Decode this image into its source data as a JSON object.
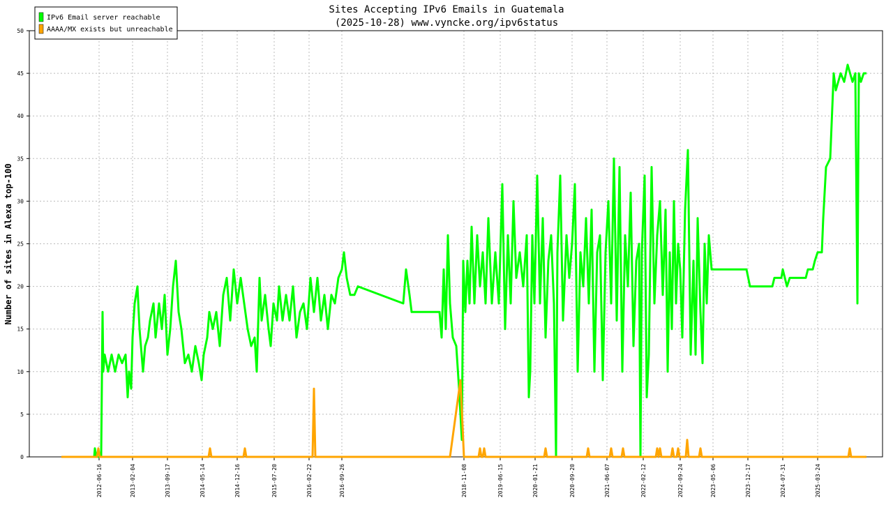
{
  "chart_data": {
    "type": "line",
    "title": "Sites Accepting IPv6 Emails in Guatemala",
    "subtitle": "(2025-10-28) www.vyncke.org/ipv6status",
    "y_label": "Number of sites in Alexa top-100",
    "xlim": [
      42,
      1265
    ],
    "ylim": [
      0,
      50
    ],
    "yticks": [
      0,
      5,
      10,
      15,
      20,
      25,
      30,
      35,
      40,
      45,
      50
    ],
    "xticks": [
      {
        "value": 142,
        "label": "2012-06-16"
      },
      {
        "value": 190,
        "label": "2013-02-04"
      },
      {
        "value": 240,
        "label": "2013-09-17"
      },
      {
        "value": 290,
        "label": "2014-05-14"
      },
      {
        "value": 340,
        "label": "2014-12-16"
      },
      {
        "value": 393,
        "label": "2015-07-20"
      },
      {
        "value": 443,
        "label": "2016-02-22"
      },
      {
        "value": 490,
        "label": "2016-09-26"
      },
      {
        "value": 665,
        "label": "2018-11-08"
      },
      {
        "value": 717,
        "label": "2019-06-15"
      },
      {
        "value": 767,
        "label": "2020-01-21"
      },
      {
        "value": 820,
        "label": "2020-09-20"
      },
      {
        "value": 870,
        "label": "2021-06-07"
      },
      {
        "value": 922,
        "label": "2022-02-12"
      },
      {
        "value": 975,
        "label": "2022-09-24"
      },
      {
        "value": 1022,
        "label": "2023-05-06"
      },
      {
        "value": 1072,
        "label": "2023-12-17"
      },
      {
        "value": 1122,
        "label": "2024-07-31"
      },
      {
        "value": 1172,
        "label": "2025-03-24"
      }
    ],
    "grid": true,
    "legend": "top-left",
    "series": [
      {
        "name": "IPv6 Email server reachable",
        "color": "#00ff00",
        "x": [
          88,
          135,
          136,
          138,
          145,
          147,
          148,
          150,
          155,
          160,
          165,
          170,
          175,
          180,
          183,
          185,
          188,
          190,
          193,
          197,
          200,
          205,
          208,
          212,
          215,
          220,
          223,
          228,
          232,
          236,
          240,
          244,
          248,
          252,
          256,
          260,
          265,
          270,
          275,
          280,
          285,
          289,
          292,
          297,
          300,
          305,
          310,
          315,
          320,
          325,
          330,
          335,
          340,
          345,
          350,
          355,
          360,
          365,
          368,
          372,
          375,
          380,
          385,
          388,
          392,
          397,
          400,
          405,
          410,
          415,
          420,
          425,
          430,
          435,
          440,
          445,
          450,
          455,
          460,
          465,
          470,
          475,
          480,
          485,
          490,
          493,
          497,
          502,
          508,
          513,
          578,
          582,
          587,
          590,
          630,
          633,
          636,
          639,
          642,
          645,
          649,
          654,
          658,
          662,
          664,
          667,
          670,
          673,
          676,
          680,
          684,
          688,
          692,
          696,
          700,
          705,
          710,
          715,
          720,
          724,
          728,
          732,
          736,
          740,
          745,
          750,
          755,
          758,
          760,
          763,
          766,
          770,
          774,
          778,
          782,
          786,
          790,
          794,
          797,
          799,
          803,
          807,
          812,
          816,
          820,
          824,
          828,
          832,
          836,
          840,
          844,
          848,
          852,
          856,
          860,
          864,
          868,
          872,
          876,
          880,
          884,
          888,
          892,
          896,
          900,
          904,
          908,
          912,
          916,
          918,
          920,
          924,
          927,
          930,
          934,
          938,
          942,
          946,
          950,
          954,
          957,
          960,
          963,
          966,
          969,
          972,
          975,
          978,
          982,
          986,
          990,
          994,
          997,
          1000,
          1004,
          1007,
          1010,
          1013,
          1016,
          1020,
          1070,
          1075,
          1107,
          1110,
          1120,
          1122,
          1125,
          1128,
          1132,
          1155,
          1158,
          1165,
          1168,
          1172,
          1178,
          1180,
          1184,
          1190,
          1195,
          1198,
          1205,
          1210,
          1215,
          1222,
          1226,
          1229,
          1231,
          1234,
          1238,
          1242
        ],
        "values": [
          0,
          0,
          1,
          0,
          0,
          17,
          10,
          12,
          10,
          12,
          10,
          12,
          11,
          12,
          7,
          10,
          8,
          14,
          18,
          20,
          15,
          10,
          13,
          14,
          16,
          18,
          14,
          18,
          15,
          19,
          12,
          15,
          20,
          23,
          17,
          15,
          11,
          12,
          10,
          13,
          11,
          9,
          12,
          14,
          17,
          15,
          17,
          13,
          19,
          21,
          16,
          22,
          18,
          21,
          18,
          15,
          13,
          14,
          10,
          21,
          16,
          19,
          15,
          13,
          18,
          16,
          20,
          16,
          19,
          16,
          20,
          14,
          17,
          18,
          15,
          21,
          17,
          21,
          16,
          19,
          15,
          19,
          18,
          21,
          22,
          24,
          21,
          19,
          19,
          20,
          18,
          22,
          19,
          17,
          17,
          14,
          22,
          15,
          26,
          18,
          14,
          13,
          8,
          2,
          23,
          17,
          23,
          18,
          27,
          18,
          26,
          20,
          24,
          18,
          28,
          18,
          24,
          18,
          32,
          15,
          26,
          18,
          30,
          21,
          24,
          20,
          26,
          7,
          10,
          26,
          18,
          33,
          18,
          28,
          14,
          23,
          26,
          18,
          0,
          24,
          33,
          16,
          26,
          21,
          25,
          32,
          10,
          24,
          20,
          28,
          18,
          29,
          10,
          24,
          26,
          9,
          24,
          30,
          18,
          35,
          16,
          34,
          10,
          26,
          20,
          31,
          13,
          23,
          25,
          0,
          24,
          33,
          7,
          12,
          34,
          18,
          26,
          30,
          19,
          29,
          10,
          24,
          15,
          30,
          18,
          25,
          22,
          14,
          29,
          36,
          12,
          23,
          12,
          28,
          17,
          11,
          25,
          18,
          26,
          22,
          22,
          20,
          20,
          21,
          21,
          22,
          21,
          20,
          21,
          21,
          22,
          22,
          23,
          24,
          24,
          28,
          34,
          35,
          45,
          43,
          45,
          44,
          46,
          44,
          45,
          18,
          45,
          44,
          45,
          45
        ]
      },
      {
        "name": "AAAA/MX exists but unreachable",
        "color": "#ffa500",
        "x": [
          88,
          139,
          141,
          143,
          299,
          301,
          303,
          349,
          351,
          353,
          448,
          450,
          452,
          645,
          660,
          665,
          686,
          688,
          690,
          692,
          694,
          696,
          780,
          782,
          784,
          841,
          843,
          845,
          874,
          876,
          878,
          891,
          893,
          895,
          940,
          942,
          944,
          946,
          948,
          962,
          964,
          966,
          970,
          972,
          974,
          983,
          985,
          987,
          1002,
          1004,
          1006,
          1216,
          1218,
          1220,
          1242
        ],
        "values": [
          0,
          0,
          1,
          0,
          0,
          1,
          0,
          0,
          1,
          0,
          0,
          8,
          0,
          0,
          9,
          0,
          0,
          1,
          0,
          0,
          1,
          0,
          0,
          1,
          0,
          0,
          1,
          0,
          0,
          1,
          0,
          0,
          1,
          0,
          0,
          1,
          0,
          1,
          0,
          0,
          1,
          0,
          0,
          1,
          0,
          0,
          2,
          0,
          0,
          1,
          0,
          0,
          1,
          0,
          0
        ]
      }
    ]
  }
}
